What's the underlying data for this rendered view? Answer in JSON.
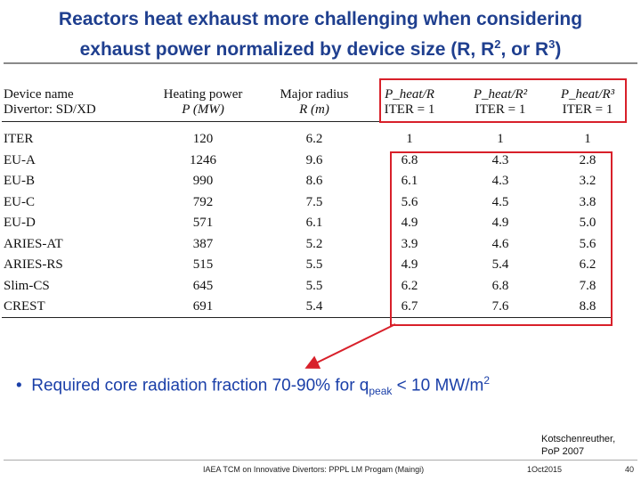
{
  "title": {
    "line1": "Reactors heat exhaust more challenging when considering",
    "line2_pre": "exhaust power normalized by device size (R, R",
    "sup2": "2",
    "line2_mid": ", or R",
    "sup3": "3",
    "line2_post": ")"
  },
  "table": {
    "headers": {
      "col1_line1": "Device name",
      "col1_line2": "Divertor: SD/XD",
      "col2_line1": "Heating power",
      "col2_line2": "P (MW)",
      "col3_line1": "Major radius",
      "col3_line2": "R (m)",
      "col4_line1": "P_heat/R",
      "col4_line2": "ITER = 1",
      "col5_line1": "P_heat/R²",
      "col5_line2": "ITER = 1",
      "col6_line1": "P_heat/R³",
      "col6_line2": "ITER = 1"
    },
    "rows": [
      {
        "name": "ITER",
        "p": "120",
        "r": "6.2",
        "pr": "1",
        "pr2": "1",
        "pr3": "1"
      },
      {
        "name": "EU-A",
        "p": "1246",
        "r": "9.6",
        "pr": "6.8",
        "pr2": "4.3",
        "pr3": "2.8"
      },
      {
        "name": "EU-B",
        "p": "990",
        "r": "8.6",
        "pr": "6.1",
        "pr2": "4.3",
        "pr3": "3.2"
      },
      {
        "name": "EU-C",
        "p": "792",
        "r": "7.5",
        "pr": "5.6",
        "pr2": "4.5",
        "pr3": "3.8"
      },
      {
        "name": "EU-D",
        "p": "571",
        "r": "6.1",
        "pr": "4.9",
        "pr2": "4.9",
        "pr3": "5.0"
      },
      {
        "name": "ARIES-AT",
        "p": "387",
        "r": "5.2",
        "pr": "3.9",
        "pr2": "4.6",
        "pr3": "5.6"
      },
      {
        "name": "ARIES-RS",
        "p": "515",
        "r": "5.5",
        "pr": "4.9",
        "pr2": "5.4",
        "pr3": "6.2"
      },
      {
        "name": "Slim-CS",
        "p": "645",
        "r": "5.5",
        "pr": "6.2",
        "pr2": "6.8",
        "pr3": "7.8"
      },
      {
        "name": "CREST",
        "p": "691",
        "r": "5.4",
        "pr": "6.7",
        "pr2": "7.6",
        "pr3": "8.8"
      }
    ]
  },
  "bullet": {
    "mark": "•",
    "pre": "Required core radiation fraction 70-90% for q",
    "sub": "peak",
    "mid": " < 10 MW/m",
    "sup": "2"
  },
  "reference": {
    "line1": "Kotschenreuther,",
    "line2": "PoP 2007"
  },
  "footer": {
    "center": "IAEA TCM on Innovative Divertors: PPPL LM Progam (Maingi)",
    "date": "1Oct2015",
    "page": "40"
  },
  "colors": {
    "title": "#1f3f8f",
    "highlight_box": "#d8202a",
    "bullet": "#1a3fa8"
  }
}
